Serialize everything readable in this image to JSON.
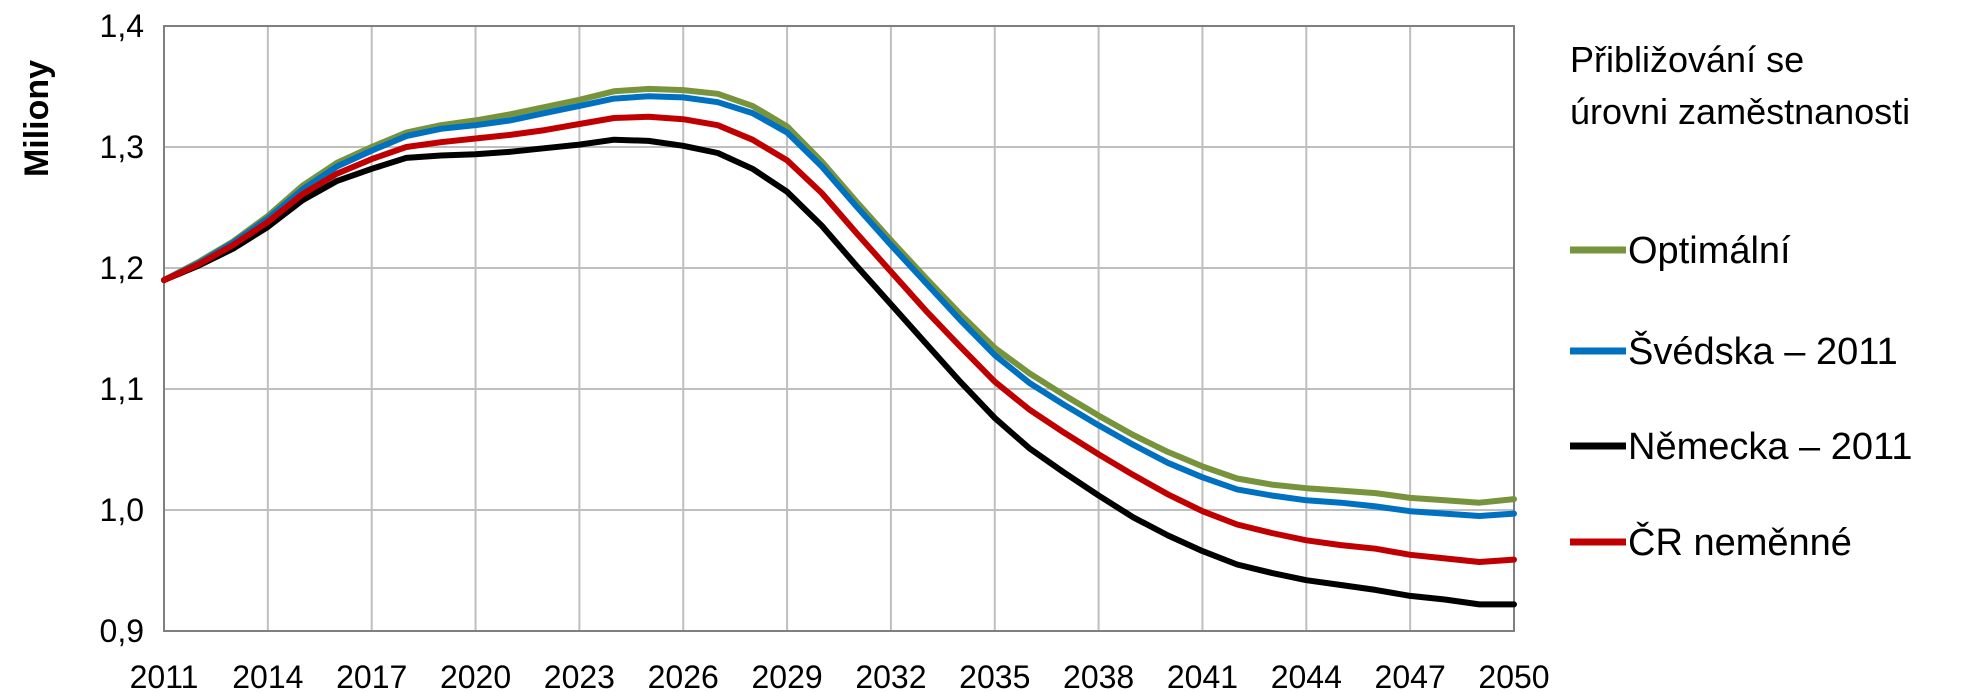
{
  "chart_data": {
    "type": "line",
    "ylabel": "Miliony",
    "ylim": [
      0.9,
      1.4
    ],
    "yticks": [
      "0,9",
      "1,0",
      "1,1",
      "1,2",
      "1,3",
      "1,4"
    ],
    "xlim": [
      2011,
      2050
    ],
    "xticks": [
      "2011",
      "2014",
      "2017",
      "2020",
      "2023",
      "2026",
      "2029",
      "2032",
      "2035",
      "2038",
      "2041",
      "2044",
      "2047",
      "2050"
    ],
    "grid": true,
    "legend": {
      "position": "right",
      "title": [
        "Přibližování se",
        "úrovni zaměstnanosti"
      ]
    },
    "x": [
      2011,
      2012,
      2013,
      2014,
      2015,
      2016,
      2017,
      2018,
      2019,
      2020,
      2021,
      2022,
      2023,
      2024,
      2025,
      2026,
      2027,
      2028,
      2029,
      2030,
      2031,
      2032,
      2033,
      2034,
      2035,
      2036,
      2037,
      2038,
      2039,
      2040,
      2041,
      2042,
      2043,
      2044,
      2045,
      2046,
      2047,
      2048,
      2049,
      2050
    ],
    "series": [
      {
        "name": "Optimální",
        "color": "#77933C",
        "values": [
          1.19,
          1.205,
          1.222,
          1.243,
          1.268,
          1.287,
          1.3,
          1.312,
          1.318,
          1.322,
          1.327,
          1.333,
          1.339,
          1.346,
          1.348,
          1.347,
          1.344,
          1.334,
          1.317,
          1.288,
          1.255,
          1.223,
          1.192,
          1.162,
          1.134,
          1.113,
          1.095,
          1.078,
          1.062,
          1.048,
          1.036,
          1.026,
          1.021,
          1.018,
          1.016,
          1.014,
          1.01,
          1.008,
          1.006,
          1.009
        ]
      },
      {
        "name": "Švédska – 2011",
        "color": "#0070C0",
        "values": [
          1.19,
          1.204,
          1.221,
          1.241,
          1.265,
          1.284,
          1.297,
          1.309,
          1.315,
          1.318,
          1.322,
          1.328,
          1.334,
          1.34,
          1.342,
          1.341,
          1.337,
          1.328,
          1.312,
          1.284,
          1.251,
          1.219,
          1.188,
          1.157,
          1.128,
          1.105,
          1.087,
          1.07,
          1.054,
          1.039,
          1.027,
          1.017,
          1.012,
          1.008,
          1.006,
          1.003,
          0.999,
          0.997,
          0.995,
          0.997
        ]
      },
      {
        "name": "Německa – 2011",
        "color": "#000000",
        "values": [
          1.19,
          1.202,
          1.216,
          1.234,
          1.256,
          1.272,
          1.282,
          1.291,
          1.293,
          1.294,
          1.296,
          1.299,
          1.302,
          1.306,
          1.305,
          1.301,
          1.295,
          1.282,
          1.263,
          1.235,
          1.202,
          1.17,
          1.138,
          1.106,
          1.076,
          1.051,
          1.031,
          1.012,
          0.994,
          0.979,
          0.966,
          0.955,
          0.948,
          0.942,
          0.938,
          0.934,
          0.929,
          0.926,
          0.922,
          0.922
        ]
      },
      {
        "name": "ČR neměnné",
        "color": "#C00000",
        "values": [
          1.19,
          1.203,
          1.219,
          1.238,
          1.261,
          1.278,
          1.29,
          1.3,
          1.304,
          1.307,
          1.31,
          1.314,
          1.319,
          1.324,
          1.325,
          1.323,
          1.318,
          1.306,
          1.289,
          1.262,
          1.229,
          1.197,
          1.165,
          1.135,
          1.106,
          1.083,
          1.064,
          1.046,
          1.029,
          1.013,
          0.999,
          0.988,
          0.981,
          0.975,
          0.971,
          0.968,
          0.963,
          0.96,
          0.957,
          0.959
        ]
      }
    ]
  }
}
